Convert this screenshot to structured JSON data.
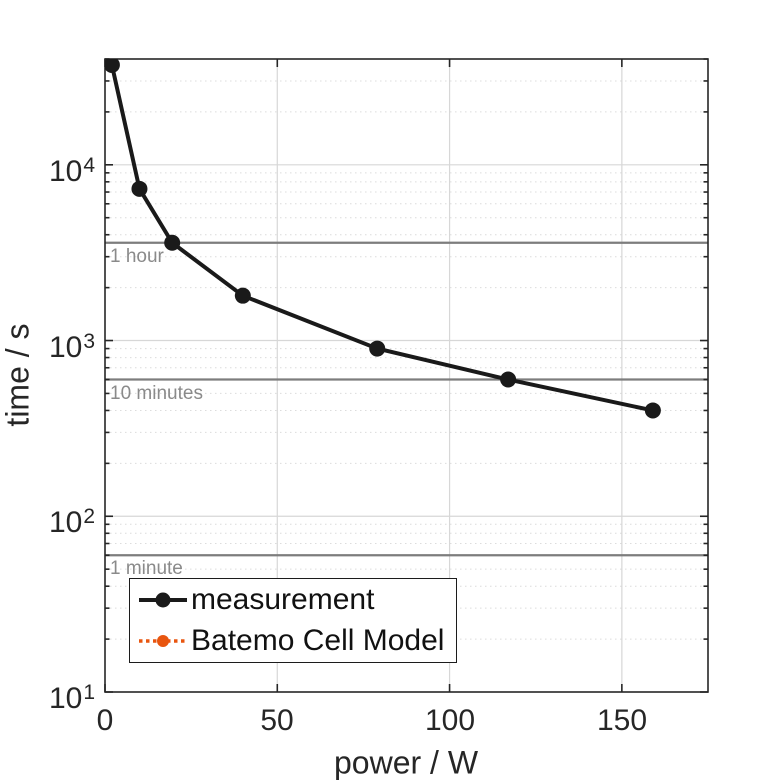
{
  "colors": {
    "measurement_black": "#1a1a1a",
    "model_orange": "#E8550F",
    "reference_line_gray": "#7d7d7d",
    "reference_label_gray": "#8a8a8a",
    "axis_dark": "#262626",
    "grid_major": "#d7d7d7",
    "grid_minor": "#dcdcdc"
  },
  "chart_data": {
    "type": "line",
    "title": "",
    "xlabel": "power / W",
    "ylabel": "time / s",
    "xscale": "linear",
    "yscale": "log",
    "xlim": [
      0,
      175
    ],
    "ylim": [
      10,
      40000
    ],
    "grid": "major gridlines plus dotted log minor gridlines",
    "x_ticks": [
      {
        "value": 0,
        "label": "0"
      },
      {
        "value": 50,
        "label": "50"
      },
      {
        "value": 100,
        "label": "100"
      },
      {
        "value": 150,
        "label": "150"
      }
    ],
    "y_ticks": [
      {
        "value": 10,
        "base": "10",
        "exp": "1"
      },
      {
        "value": 100,
        "base": "10",
        "exp": "2"
      },
      {
        "value": 1000,
        "base": "10",
        "exp": "3"
      },
      {
        "value": 10000,
        "base": "10",
        "exp": "4"
      }
    ],
    "series": [
      {
        "name": "measurement",
        "color": "#1a1a1a",
        "line_style": "solid",
        "marker": "filled-circle",
        "x": [
          2,
          10,
          19.5,
          40,
          79,
          117,
          159
        ],
        "y": [
          37000,
          7300,
          3600,
          1800,
          900,
          600,
          400
        ]
      },
      {
        "name": "Batemo Cell Model",
        "color": "#E8550F",
        "line_style": "dotted",
        "marker": "filled-circle",
        "x": [],
        "y": []
      }
    ],
    "reference_lines": [
      {
        "label": "1 hour",
        "value_s": 3600
      },
      {
        "label": "10 minutes",
        "value_s": 600
      },
      {
        "label": "1 minute",
        "value_s": 60
      }
    ],
    "legend": {
      "position": "southwest"
    }
  }
}
